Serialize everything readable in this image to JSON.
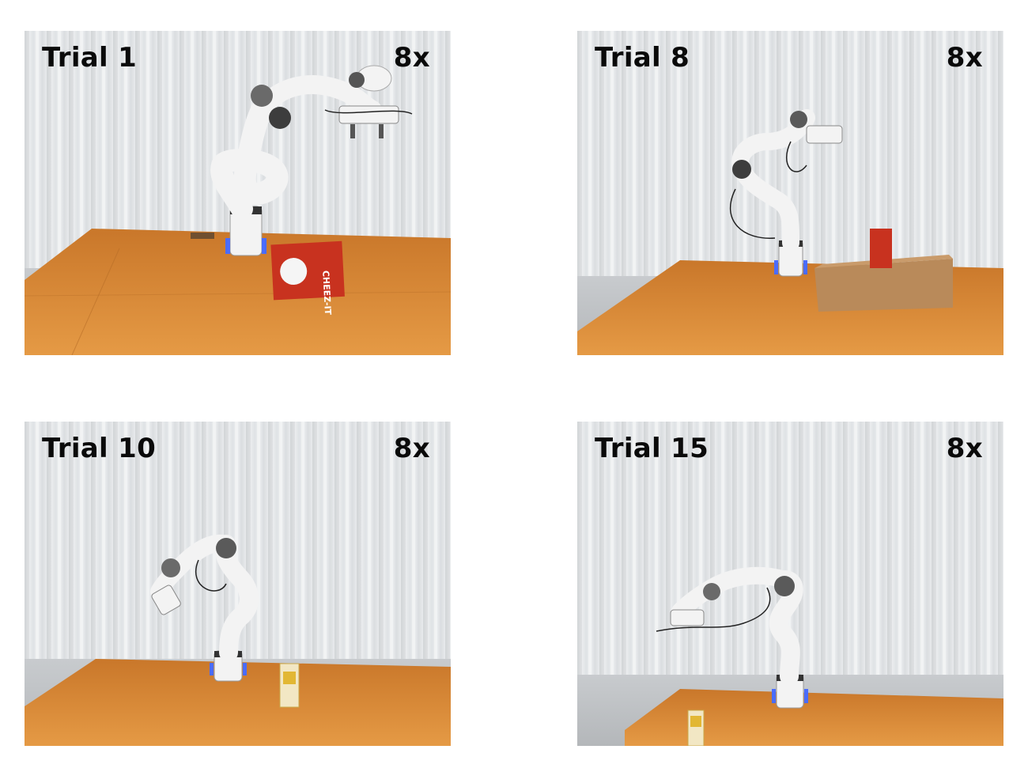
{
  "panels": [
    {
      "trial": "Trial 1",
      "speed": "8x"
    },
    {
      "trial": "Trial 8",
      "speed": "8x"
    },
    {
      "trial": "Trial 10",
      "speed": "8x"
    },
    {
      "trial": "Trial 15",
      "speed": "8x"
    }
  ],
  "box_text": "CHEEZ-IT",
  "colors": {
    "curtain": "#e6e8ea",
    "table": "#d98a35",
    "robot": "#f3f3f3",
    "joint": "#6a6a6a",
    "base_light": "#4a6cff",
    "cheezit": "#c8321f",
    "cardboard": "#b98a5a"
  }
}
